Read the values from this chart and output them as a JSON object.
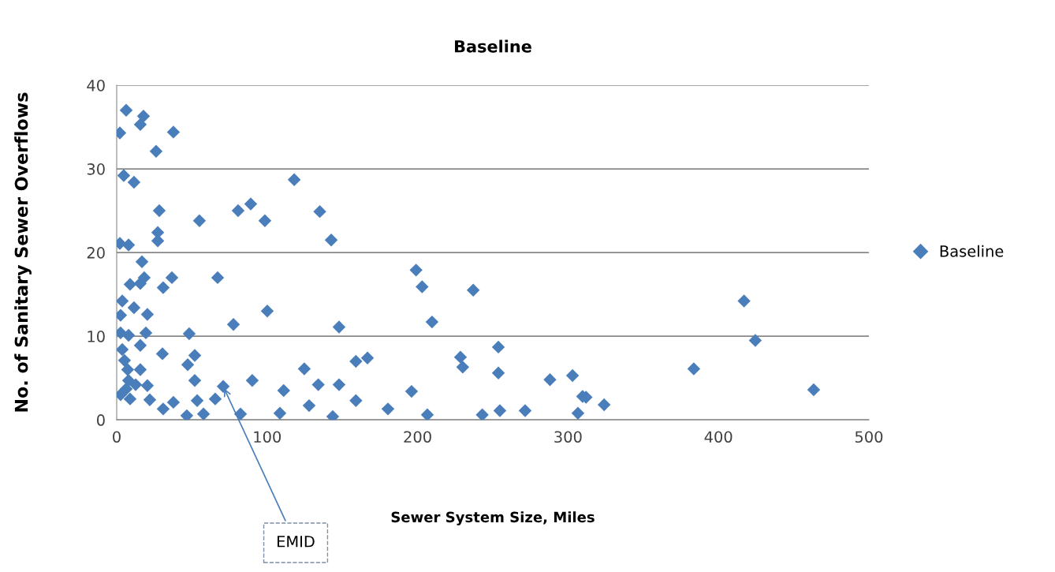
{
  "chart_data": {
    "type": "scatter",
    "title": "Baseline",
    "xlabel": "Sewer System Size, Miles",
    "ylabel": "No. of Sanitary Sewer Overflows",
    "xlim": [
      0,
      500
    ],
    "xticks": [
      0,
      100,
      200,
      300,
      400,
      500
    ],
    "ylim": [
      0,
      40
    ],
    "yticks": [
      0,
      10,
      20,
      30,
      40
    ],
    "grid": "y",
    "legend": "right",
    "marker": "diamond",
    "annotations": [
      {
        "text": "EMID",
        "x": 70.8,
        "y": 4.0
      }
    ],
    "series": [
      {
        "name": "Baseline",
        "color": "#4a7ebb",
        "x": [
          6.3,
          17.8,
          15.7,
          2.1,
          37.7,
          26.2,
          4.7,
          11.5,
          118,
          28.3,
          80.7,
          89.1,
          55,
          98.5,
          27.3,
          27.3,
          2.1,
          7.9,
          16.8,
          18.3,
          15.7,
          8.9,
          36.7,
          30.9,
          67.1,
          3.7,
          11.5,
          2.6,
          20.4,
          100.1,
          77.6,
          2.6,
          7.9,
          19.4,
          48.2,
          3.7,
          15.7,
          30.4,
          51.9,
          5.2,
          47.2,
          7.3,
          15.7,
          51.9,
          90.1,
          70.8,
          2.6,
          12.6,
          8.9,
          20.4,
          22,
          30.9,
          37.7,
          53.5,
          65.5,
          46.6,
          57.7,
          82.3,
          111,
          108.5,
          6.3,
          7.9,
          135,
          142.6,
          147.8,
          199,
          203,
          237,
          209.6,
          124.7,
          134,
          147.8,
          159,
          166.7,
          127.9,
          143.6,
          159,
          180.3,
          196,
          206.5,
          228.5,
          230,
          243,
          253.7,
          253.7,
          254.7,
          271.5,
          288,
          303,
          306.6,
          309.7,
          312,
          324,
          383.6,
          417,
          424.5,
          463.3
        ],
        "values": [
          37.0,
          36.3,
          35.3,
          34.3,
          34.4,
          32.1,
          29.2,
          28.4,
          28.7,
          25.0,
          25.0,
          25.8,
          23.8,
          23.8,
          22.4,
          21.4,
          21.1,
          20.9,
          18.9,
          17.0,
          16.3,
          16.2,
          17.0,
          15.8,
          17.0,
          14.2,
          13.4,
          12.5,
          12.6,
          13.0,
          11.4,
          10.4,
          10.1,
          10.4,
          10.3,
          8.4,
          8.9,
          7.9,
          7.7,
          7.1,
          6.6,
          6.0,
          6.0,
          4.7,
          4.7,
          4.0,
          3.0,
          4.2,
          2.5,
          4.1,
          2.4,
          1.3,
          2.1,
          2.3,
          2.5,
          0.5,
          0.7,
          0.7,
          3.5,
          0.8,
          3.7,
          4.7,
          24.9,
          21.5,
          11.1,
          17.9,
          15.9,
          15.5,
          11.7,
          6.1,
          4.2,
          4.2,
          7.0,
          7.4,
          1.7,
          0.4,
          2.3,
          1.3,
          3.4,
          0.6,
          7.5,
          6.3,
          0.6,
          8.7,
          5.6,
          1.1,
          1.1,
          4.8,
          5.3,
          0.8,
          2.8,
          2.7,
          1.8,
          6.1,
          14.2,
          9.5,
          3.6
        ]
      }
    ]
  }
}
